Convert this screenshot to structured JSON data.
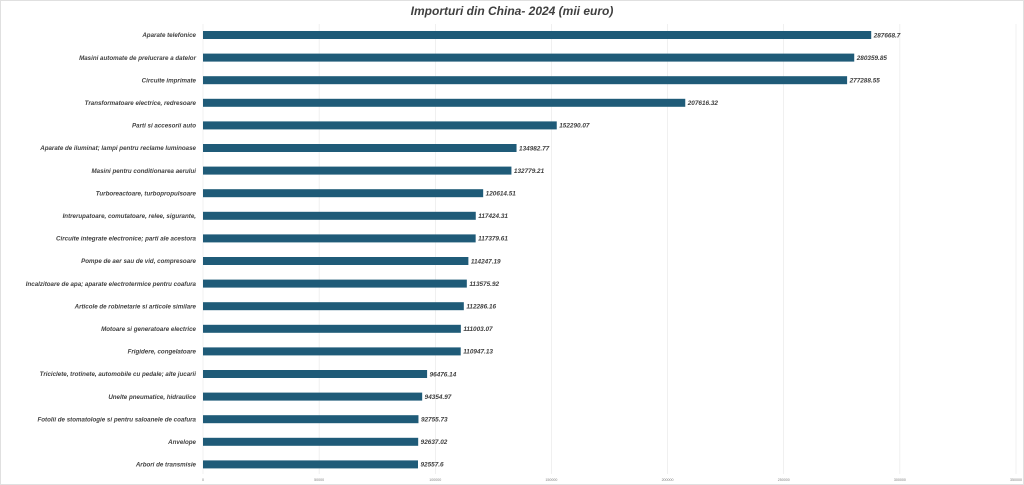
{
  "chart_data": {
    "type": "bar",
    "orientation": "horizontal",
    "title": "Importuri din China- 2024  (mii euro)",
    "xlabel": "",
    "ylabel": "",
    "categories": [
      "Aparate telefonice",
      "Masini automate de prelucrare a datelor",
      "Circuite imprimate",
      "Transformatoare electrice, redresoare",
      "Parti si accesorii auto",
      "Aparate de iluminat; lampi pentru reclame luminoase",
      "Masini pentru conditionarea aerului",
      "Turboreactoare, turbopropulsoare",
      "Intrerupatoare, comutatoare, relee, sigurante,",
      "Circuite integrate electronice; parti ale acestora",
      "Pompe de aer sau de vid, compresoare",
      "Incalzitoare de apa; aparate electrotermice pentru coafura",
      "Articole de robinetarie si articole similare",
      "Motoare si generatoare electrice",
      "Frigidere, congelatoare",
      "Triciclete, trotinete, automobile cu pedale; alte jucarii",
      "Unelte pneumatice, hidraulice",
      "Fotolii de stomatologie si pentru saloanele de coafura",
      "Anvelope",
      "Arbori de transmisie"
    ],
    "values": [
      287668.7,
      280359.85,
      277288.55,
      207616.32,
      152290.07,
      134982.77,
      132779.21,
      120614.51,
      117424.31,
      117379.61,
      114247.19,
      113575.92,
      112286.16,
      111003.07,
      110947.13,
      96476.14,
      94354.97,
      92755.73,
      92637.02,
      92557.6
    ],
    "value_labels": [
      "287668.7",
      "280359.85",
      "277288.55",
      "207616.32",
      "152290.07",
      "134982.77",
      "132779.21",
      "120614.51",
      "117424.31",
      "117379.61",
      "114247.19",
      "113575.92",
      "112286.16",
      "111003.07",
      "110947.13",
      "96476.14",
      "94354.97",
      "92755.73",
      "92637.02",
      "92557.6"
    ],
    "xlim": [
      0,
      350000
    ],
    "x_ticks": [
      0,
      50000,
      100000,
      150000,
      200000,
      250000,
      300000,
      350000
    ],
    "x_tick_labels": [
      "0",
      "50000",
      "100000",
      "150000",
      "200000",
      "250000",
      "300000",
      "350000"
    ],
    "grid": true,
    "legend": false,
    "bar_color": "#1f5b78"
  }
}
